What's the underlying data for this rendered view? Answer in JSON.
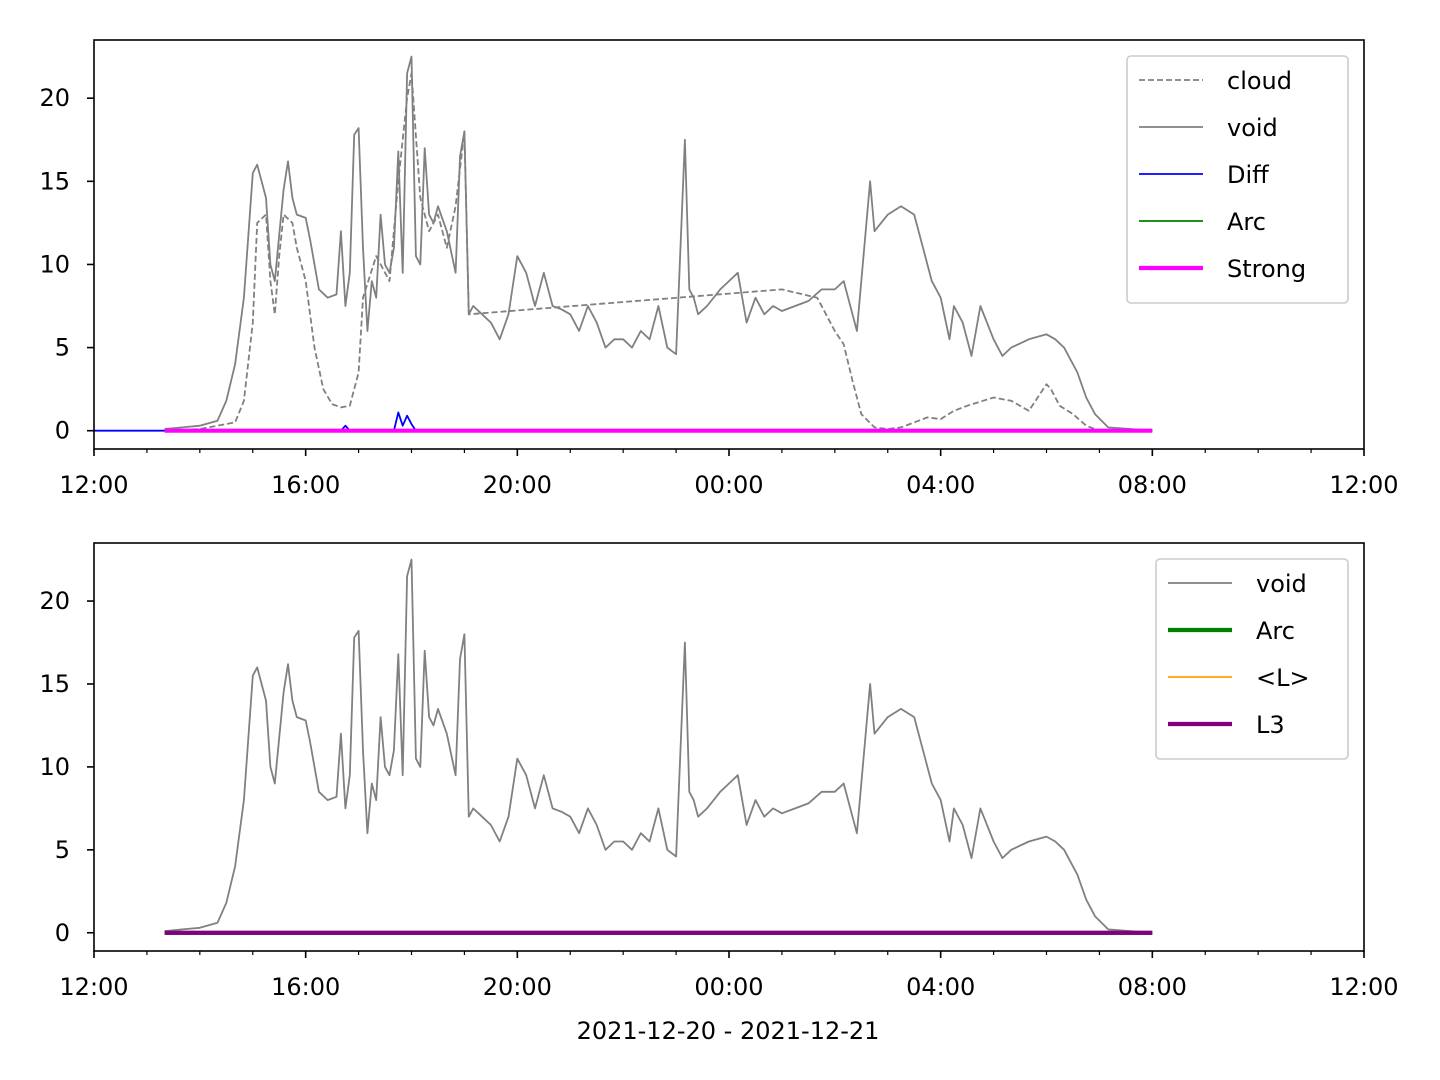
{
  "figure": {
    "xlabel": "2021-12-20 - 2021-12-21"
  },
  "chart_data": [
    {
      "type": "line",
      "title": "",
      "xlabel": "",
      "ylabel": "",
      "x_unit": "datetime",
      "xlim": [
        "2021-12-20 12:00",
        "2021-12-21 12:00"
      ],
      "ylim": [
        -1.1,
        23.5
      ],
      "xticks": [
        "2021-12-20 12:00",
        "2021-12-20 16:00",
        "2021-12-20 20:00",
        "2021-12-21 00:00",
        "2021-12-21 04:00",
        "2021-12-21 08:00",
        "2021-12-21 12:00"
      ],
      "xtick_labels": [
        "12:00",
        "16:00",
        "20:00",
        "00:00",
        "04:00",
        "08:00",
        "12:00"
      ],
      "yticks": [
        0,
        5,
        10,
        15,
        20
      ],
      "ytick_labels": [
        "0",
        "5",
        "10",
        "15",
        "20"
      ],
      "grid": false,
      "legend": "top-right",
      "series": [
        {
          "name": "cloud",
          "color": "#808080",
          "style": "dashed",
          "x": [
            "12-20 13:20",
            "12-20 14:00",
            "12-20 14:40",
            "12-20 14:50",
            "12-20 15:00",
            "12-20 15:05",
            "12-20 15:15",
            "12-20 15:20",
            "12-20 15:25",
            "12-20 15:30",
            "12-20 15:35",
            "12-20 15:45",
            "12-20 15:50",
            "12-20 15:55",
            "12-20 16:00",
            "12-20 16:10",
            "12-20 16:20",
            "12-20 16:30",
            "12-20 16:40",
            "12-20 16:50",
            "12-20 17:00",
            "12-20 17:05",
            "12-20 17:20",
            "12-20 17:35",
            "12-20 17:45",
            "12-20 17:55",
            "12-20 18:00",
            "12-20 18:10",
            "12-20 18:20",
            "12-20 18:30",
            "12-20 18:40",
            "12-20 18:50",
            "12-20 19:00",
            "12-20 19:05",
            "12-21 01:00",
            "12-21 01:40",
            "12-21 01:50",
            "12-21 02:00",
            "12-21 02:10",
            "12-21 02:20",
            "12-21 02:30",
            "12-21 02:45",
            "12-21 03:00",
            "12-21 03:15",
            "12-21 03:30",
            "12-21 03:45",
            "12-21 04:00",
            "12-21 04:15",
            "12-21 04:30",
            "12-21 05:00",
            "12-21 05:20",
            "12-21 05:40",
            "12-21 06:00",
            "12-21 06:05",
            "12-21 06:15",
            "12-21 06:30",
            "12-21 06:45",
            "12-21 07:00",
            "12-21 08:00"
          ],
          "y": [
            0.0,
            0.1,
            0.5,
            1.8,
            6.5,
            12.5,
            13.0,
            9.0,
            7.0,
            10.5,
            13.0,
            12.5,
            11.0,
            10.0,
            9.0,
            5.0,
            2.5,
            1.6,
            1.4,
            1.5,
            3.5,
            8.0,
            10.5,
            9.0,
            15.0,
            20.0,
            21.5,
            14.0,
            12.0,
            13.0,
            11.0,
            13.5,
            18.0,
            7.0,
            8.5,
            8.0,
            7.0,
            6.0,
            5.2,
            3.0,
            1.0,
            0.2,
            0.1,
            0.2,
            0.5,
            0.8,
            0.7,
            1.2,
            1.5,
            2.0,
            1.8,
            1.2,
            2.8,
            2.5,
            1.5,
            1.0,
            0.3,
            0.0,
            0.0
          ]
        },
        {
          "name": "void",
          "color": "#808080",
          "style": "solid",
          "x": [
            "12-20 13:20",
            "12-20 13:40",
            "12-20 14:00",
            "12-20 14:20",
            "12-20 14:30",
            "12-20 14:40",
            "12-20 14:50",
            "12-20 15:00",
            "12-20 15:05",
            "12-20 15:15",
            "12-20 15:20",
            "12-20 15:25",
            "12-20 15:35",
            "12-20 15:40",
            "12-20 15:45",
            "12-20 15:50",
            "12-20 16:00",
            "12-20 16:05",
            "12-20 16:15",
            "12-20 16:25",
            "12-20 16:35",
            "12-20 16:40",
            "12-20 16:45",
            "12-20 16:50",
            "12-20 16:55",
            "12-20 17:00",
            "12-20 17:05",
            "12-20 17:10",
            "12-20 17:15",
            "12-20 17:20",
            "12-20 17:25",
            "12-20 17:30",
            "12-20 17:35",
            "12-20 17:40",
            "12-20 17:45",
            "12-20 17:50",
            "12-20 17:55",
            "12-20 18:00",
            "12-20 18:05",
            "12-20 18:10",
            "12-20 18:15",
            "12-20 18:20",
            "12-20 18:25",
            "12-20 18:30",
            "12-20 18:40",
            "12-20 18:50",
            "12-20 18:55",
            "12-20 19:00",
            "12-20 19:05",
            "12-20 19:10",
            "12-20 19:20",
            "12-20 19:30",
            "12-20 19:40",
            "12-20 19:50",
            "12-20 20:00",
            "12-20 20:10",
            "12-20 20:20",
            "12-20 20:30",
            "12-20 20:40",
            "12-20 20:50",
            "12-20 21:00",
            "12-20 21:10",
            "12-20 21:20",
            "12-20 21:30",
            "12-20 21:40",
            "12-20 21:50",
            "12-20 22:00",
            "12-20 22:10",
            "12-20 22:20",
            "12-20 22:30",
            "12-20 22:40",
            "12-20 22:50",
            "12-20 23:00",
            "12-20 23:10",
            "12-20 23:15",
            "12-20 23:20",
            "12-20 23:25",
            "12-20 23:35",
            "12-20 23:50",
            "12-21 00:00",
            "12-21 00:10",
            "12-21 00:20",
            "12-21 00:30",
            "12-21 00:40",
            "12-21 00:50",
            "12-21 01:00",
            "12-21 01:15",
            "12-21 01:30",
            "12-21 01:45",
            "12-21 02:00",
            "12-21 02:10",
            "12-21 02:20",
            "12-21 02:25",
            "12-21 02:35",
            "12-21 02:40",
            "12-21 02:45",
            "12-21 03:00",
            "12-21 03:15",
            "12-21 03:30",
            "12-21 03:40",
            "12-21 03:50",
            "12-21 04:00",
            "12-21 04:10",
            "12-21 04:15",
            "12-21 04:25",
            "12-21 04:35",
            "12-21 04:45",
            "12-21 05:00",
            "12-21 05:10",
            "12-21 05:20",
            "12-21 05:40",
            "12-21 06:00",
            "12-21 06:10",
            "12-21 06:20",
            "12-21 06:35",
            "12-21 06:45",
            "12-21 06:55",
            "12-21 07:10",
            "12-21 08:00"
          ],
          "y": [
            0.1,
            0.2,
            0.3,
            0.6,
            1.8,
            4.0,
            8.0,
            15.5,
            16.0,
            14.0,
            10.0,
            9.0,
            14.5,
            16.2,
            14.0,
            13.0,
            12.8,
            11.5,
            8.5,
            8.0,
            8.2,
            12.0,
            7.5,
            9.5,
            17.8,
            18.2,
            11.0,
            6.0,
            9.0,
            8.0,
            13.0,
            10.0,
            9.5,
            11.0,
            16.8,
            9.5,
            21.5,
            22.5,
            10.5,
            10.0,
            17.0,
            13.0,
            12.5,
            13.5,
            12.0,
            9.5,
            16.5,
            18.0,
            7.0,
            7.5,
            7.0,
            6.5,
            5.5,
            7.0,
            10.5,
            9.5,
            7.5,
            9.5,
            7.5,
            7.3,
            7.0,
            6.0,
            7.5,
            6.5,
            5.0,
            5.5,
            5.5,
            5.0,
            6.0,
            5.5,
            7.5,
            5.0,
            4.6,
            17.5,
            8.5,
            8.0,
            7.0,
            7.5,
            8.5,
            9.0,
            9.5,
            6.5,
            8.0,
            7.0,
            7.5,
            7.2,
            7.5,
            7.8,
            8.5,
            8.5,
            9.0,
            7.0,
            6.0,
            12.0,
            15.0,
            12.0,
            13.0,
            13.5,
            13.0,
            11.0,
            9.0,
            8.0,
            5.5,
            7.5,
            6.5,
            4.5,
            7.5,
            5.5,
            4.5,
            5.0,
            5.5,
            5.8,
            5.5,
            5.0,
            3.5,
            2.0,
            1.0,
            0.2,
            0.0
          ]
        },
        {
          "name": "Diff",
          "color": "#0000ff",
          "style": "solid",
          "x": [
            "12-20 13:20",
            "12-20 16:40",
            "12-20 16:45",
            "12-20 16:50",
            "12-20 17:35",
            "12-20 17:40",
            "12-20 17:45",
            "12-20 17:50",
            "12-20 17:55",
            "12-20 18:00",
            "12-20 18:05",
            "12-20 08:00"
          ],
          "y": [
            0.0,
            0.0,
            0.3,
            0.0,
            0.0,
            0.0,
            1.1,
            0.3,
            0.9,
            0.4,
            0.0,
            0.0
          ]
        },
        {
          "name": "Arc",
          "color": "#008000",
          "style": "solid",
          "x": [
            "12-20 13:20",
            "12-21 08:00"
          ],
          "y": [
            0.0,
            0.0
          ]
        },
        {
          "name": "Strong",
          "color": "#ff00ff",
          "style": "solid",
          "width": "thick",
          "x": [
            "12-20 13:20",
            "12-21 08:00"
          ],
          "y": [
            0.0,
            0.0
          ]
        }
      ]
    },
    {
      "type": "line",
      "title": "",
      "xlabel": "2021-12-20 - 2021-12-21",
      "ylabel": "",
      "x_unit": "datetime",
      "xlim": [
        "2021-12-20 12:00",
        "2021-12-21 12:00"
      ],
      "ylim": [
        -1.1,
        23.5
      ],
      "xticks": [
        "2021-12-20 12:00",
        "2021-12-20 16:00",
        "2021-12-20 20:00",
        "2021-12-21 00:00",
        "2021-12-21 04:00",
        "2021-12-21 08:00",
        "2021-12-21 12:00"
      ],
      "xtick_labels": [
        "12:00",
        "16:00",
        "20:00",
        "00:00",
        "04:00",
        "08:00",
        "12:00"
      ],
      "yticks": [
        0,
        5,
        10,
        15,
        20
      ],
      "ytick_labels": [
        "0",
        "5",
        "10",
        "15",
        "20"
      ],
      "grid": false,
      "legend": "top-right",
      "series": [
        {
          "name": "void",
          "color": "#808080",
          "style": "solid",
          "same_as": "void"
        },
        {
          "name": "Arc",
          "color": "#008000",
          "style": "solid",
          "width": "thick",
          "x": [
            "12-20 13:20",
            "12-21 08:00"
          ],
          "y": [
            0.0,
            0.0
          ]
        },
        {
          "name": "<L>",
          "color": "#ffa500",
          "style": "solid",
          "x": [
            "12-20 13:20",
            "12-21 08:00"
          ],
          "y": [
            0.0,
            0.0
          ]
        },
        {
          "name": "L3",
          "color": "#800080",
          "style": "solid",
          "width": "thick",
          "x": [
            "12-20 13:20",
            "12-21 08:00"
          ],
          "y": [
            0.0,
            0.0
          ]
        }
      ]
    }
  ]
}
